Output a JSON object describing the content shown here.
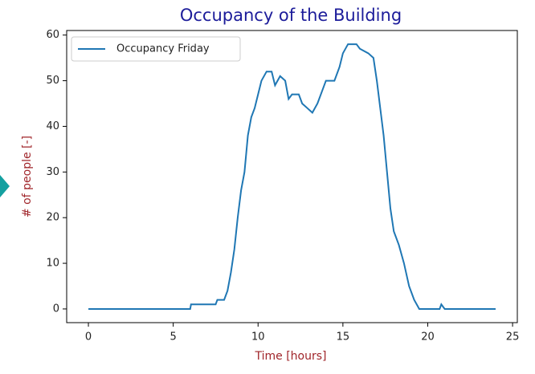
{
  "chart_data": {
    "type": "line",
    "title": "Occupancy of the Building",
    "xlabel": "Time [hours]",
    "ylabel": "# of people [-]",
    "x": [
      0,
      6,
      6.05,
      7.5,
      7.6,
      8.0,
      8.2,
      8.4,
      8.6,
      8.8,
      9.0,
      9.2,
      9.4,
      9.6,
      9.8,
      10.0,
      10.2,
      10.5,
      10.8,
      11.0,
      11.3,
      11.6,
      11.8,
      12.0,
      12.4,
      12.6,
      12.9,
      13.2,
      13.5,
      13.8,
      14.0,
      14.5,
      14.8,
      15.0,
      15.3,
      15.8,
      16.0,
      16.5,
      16.8,
      17.0,
      17.2,
      17.4,
      17.6,
      17.8,
      18.0,
      18.3,
      18.6,
      18.9,
      19.2,
      19.5,
      20.7,
      20.8,
      21.0,
      24
    ],
    "series": [
      {
        "name": "Occupancy Friday",
        "color": "#1f77b4",
        "values": [
          0,
          0,
          1,
          1,
          2,
          2,
          4,
          8,
          13,
          20,
          26,
          30,
          38,
          42,
          44,
          47,
          50,
          52,
          52,
          49,
          51,
          50,
          46,
          47,
          47,
          45,
          44,
          43,
          45,
          48,
          50,
          50,
          53,
          56,
          58,
          58,
          57,
          56,
          55,
          50,
          44,
          38,
          30,
          22,
          17,
          14,
          10,
          5,
          2,
          0,
          0,
          1,
          0,
          0
        ]
      }
    ],
    "xlim": [
      -1.28,
      25.28
    ],
    "ylim": [
      -3,
      61
    ],
    "xticks": [
      0,
      5,
      10,
      15,
      20,
      25
    ],
    "yticks": [
      0,
      10,
      20,
      30,
      40,
      50,
      60
    ],
    "grid": false,
    "legend": "upper left"
  }
}
